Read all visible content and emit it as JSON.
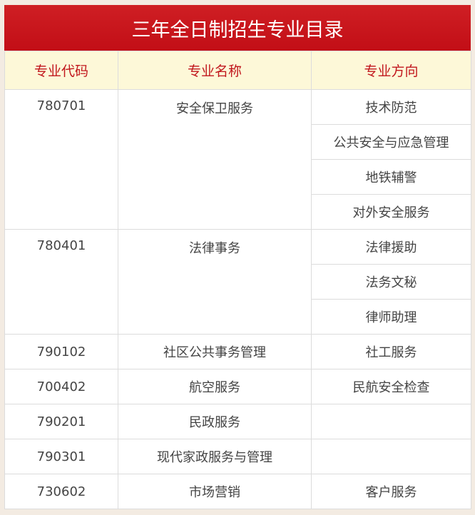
{
  "title": "三年全日制招生专业目录",
  "headers": [
    "专业代码",
    "专业名称",
    "专业方向"
  ],
  "majors": [
    {
      "code": "780701",
      "name": "安全保卫服务",
      "directions": [
        "技术防范",
        "公共安全与应急管理",
        "地铁辅警",
        "对外安全服务"
      ]
    },
    {
      "code": "780401",
      "name": "法律事务",
      "directions": [
        "法律援助",
        "法务文秘",
        "律师助理"
      ]
    },
    {
      "code": "790102",
      "name": "社区公共事务管理",
      "directions": [
        "社工服务"
      ]
    },
    {
      "code": "700402",
      "name": "航空服务",
      "directions": [
        "民航安全检查"
      ]
    },
    {
      "code": "790201",
      "name": "民政服务",
      "directions": [
        ""
      ]
    },
    {
      "code": "790301",
      "name": "现代家政服务与管理",
      "directions": [
        ""
      ]
    },
    {
      "code": "730602",
      "name": "市场营销",
      "directions": [
        "客户服务"
      ]
    }
  ],
  "colors": {
    "title_bg": "#c20e16",
    "header_bg": "#fdf8d8",
    "header_text": "#c1161c"
  }
}
